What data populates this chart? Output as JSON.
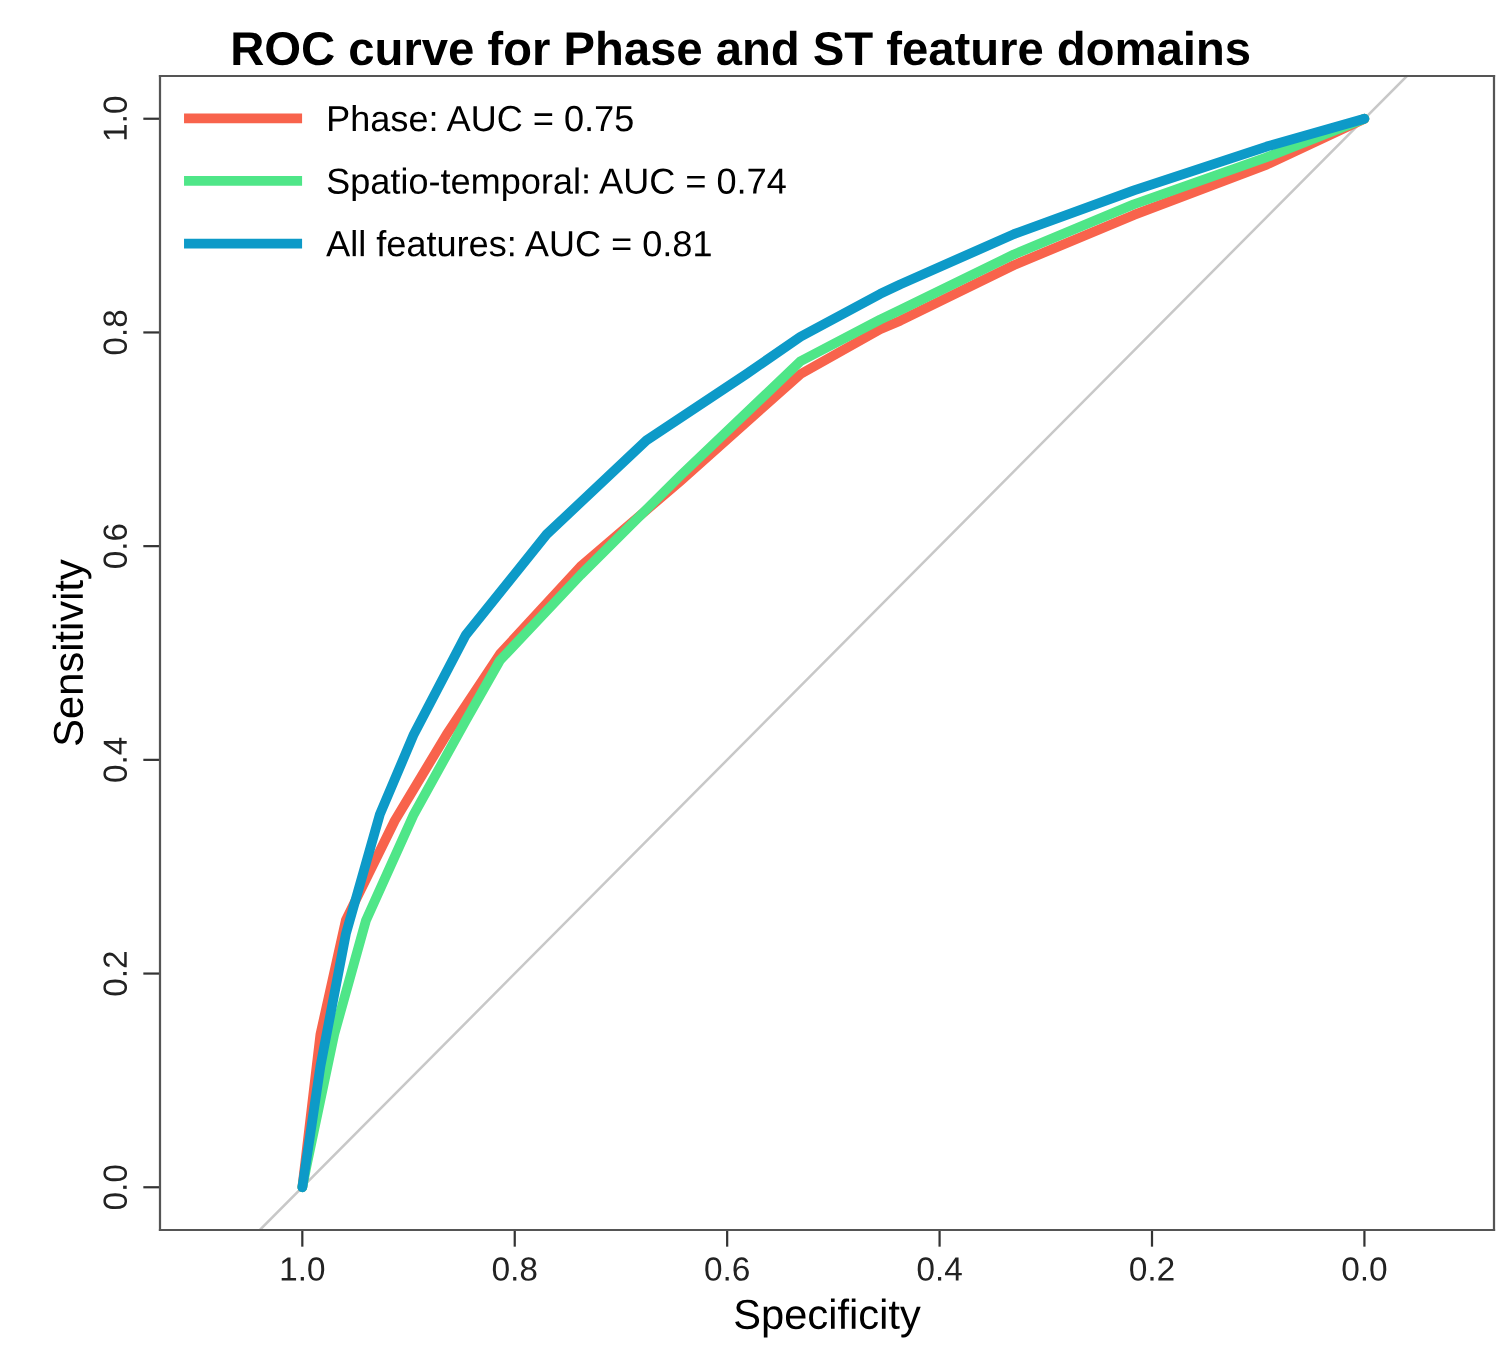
{
  "chart_data": {
    "type": "line",
    "title": "ROC curve for Phase and ST feature domains",
    "xlabel": "Specificity",
    "ylabel": "Sensitivity",
    "xlim": [
      1.134,
      -0.122
    ],
    "ylim": [
      -0.04,
      1.04
    ],
    "xticks": [
      {
        "value": 1,
        "label": "1.0"
      },
      0.8,
      0.6,
      0.4,
      0.2,
      {
        "value": 0,
        "label": "0.0"
      }
    ],
    "yticks": [
      {
        "value": 0,
        "label": "0.0"
      },
      0.2,
      0.4,
      0.6,
      0.8,
      {
        "value": 1,
        "label": "1.0"
      }
    ],
    "grid": false,
    "legend": "top left",
    "marker": "none",
    "line_style": "solid",
    "series": [
      {
        "color": "#c8c8c8",
        "x": [
          1.04,
          -0.04
        ],
        "values": [
          -0.04,
          1.04
        ]
      },
      {
        "name": "Phase: AUC = 0.75",
        "color": "#f8634c",
        "x": [
          1.0,
          0.983,
          0.959,
          0.913,
          0.864,
          0.814,
          0.738,
          0.644,
          0.531,
          0.456,
          0.437,
          0.33,
          0.217,
          0.092,
          0.0
        ],
        "values": [
          0.0,
          0.143,
          0.25,
          0.343,
          0.424,
          0.499,
          0.581,
          0.661,
          0.761,
          0.803,
          0.811,
          0.863,
          0.91,
          0.957,
          1.0
        ]
      },
      {
        "name": "Spatio-temporal: AUC = 0.74",
        "color": "#4fe688",
        "x": [
          1.0,
          0.996,
          0.97,
          0.94,
          0.895,
          0.846,
          0.814,
          0.738,
          0.644,
          0.531,
          0.456,
          0.437,
          0.33,
          0.217,
          0.092,
          0.0
        ],
        "values": [
          0.0,
          0.02,
          0.143,
          0.25,
          0.349,
          0.437,
          0.493,
          0.573,
          0.666,
          0.773,
          0.812,
          0.821,
          0.873,
          0.92,
          0.964,
          1.0
        ]
      },
      {
        "name": "All features: AUC = 0.81",
        "color": "#0d9ac8",
        "x": [
          1.0,
          0.983,
          0.959,
          0.927,
          0.895,
          0.846,
          0.77,
          0.676,
          0.582,
          0.531,
          0.456,
          0.437,
          0.33,
          0.217,
          0.092,
          0.0
        ],
        "values": [
          0.0,
          0.113,
          0.237,
          0.349,
          0.424,
          0.517,
          0.611,
          0.699,
          0.761,
          0.796,
          0.836,
          0.845,
          0.892,
          0.933,
          0.974,
          1.0
        ]
      }
    ]
  }
}
